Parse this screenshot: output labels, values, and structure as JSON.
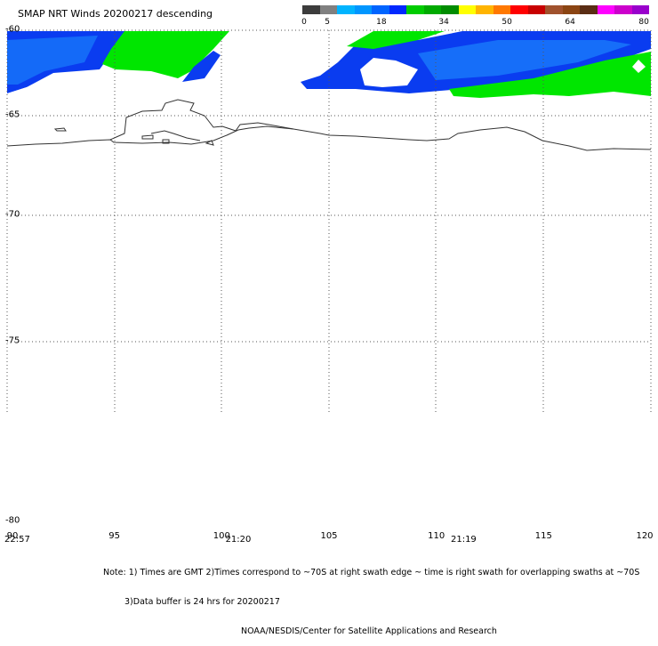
{
  "title": "SMAP NRT Winds  20200217 descending",
  "colorbar": {
    "colors": [
      "#3c3c3c",
      "#808080",
      "#00b4ff",
      "#0096ff",
      "#0064ff",
      "#0028ff",
      "#00cc00",
      "#00aa00",
      "#008c00",
      "#ffff00",
      "#ffb400",
      "#ff7800",
      "#ff0000",
      "#c80000",
      "#a0522d",
      "#8b4513",
      "#5a2d14",
      "#ff00ff",
      "#cc00cc",
      "#9900cc"
    ],
    "labels": [
      {
        "text": "0",
        "pos": 0.005
      },
      {
        "text": "5",
        "pos": 0.072
      },
      {
        "text": "18",
        "pos": 0.228
      },
      {
        "text": "34",
        "pos": 0.408
      },
      {
        "text": "50",
        "pos": 0.59
      },
      {
        "text": "64",
        "pos": 0.772
      },
      {
        "text": "80",
        "pos": 0.985
      }
    ]
  },
  "lat_labels": [
    {
      "text": "-60",
      "lat": -60
    },
    {
      "text": "-65",
      "lat": -65
    },
    {
      "text": "-70",
      "lat": -70
    },
    {
      "text": "-75",
      "lat": -75
    },
    {
      "text": "-80",
      "lat": -80
    }
  ],
  "lon_labels": [
    {
      "text": "90",
      "lon": 90
    },
    {
      "text": "95",
      "lon": 95
    },
    {
      "text": "100",
      "lon": 100
    },
    {
      "text": "105",
      "lon": 105
    },
    {
      "text": "110",
      "lon": 110
    },
    {
      "text": "115",
      "lon": 115
    },
    {
      "text": "120",
      "lon": 120
    }
  ],
  "time_labels": [
    {
      "text": "22:57",
      "lon": 90
    },
    {
      "text": "21:20",
      "lon": 100.3
    },
    {
      "text": "21:19",
      "lon": 110.8
    }
  ],
  "notes": {
    "line1": "Note: 1) Times are GMT 2)Times correspond to ~70S at right swath edge ~ time is right swath for overlapping swaths at ~70S",
    "line2": "3)Data buffer is 24 hrs for 20200217",
    "line3": "NOAA/NESDIS/Center for Satellite Applications and Research"
  },
  "colors": {
    "blue": "#0a3cf0",
    "light_blue": "#1e90ff",
    "green": "#00e600",
    "coast": "#333333"
  }
}
